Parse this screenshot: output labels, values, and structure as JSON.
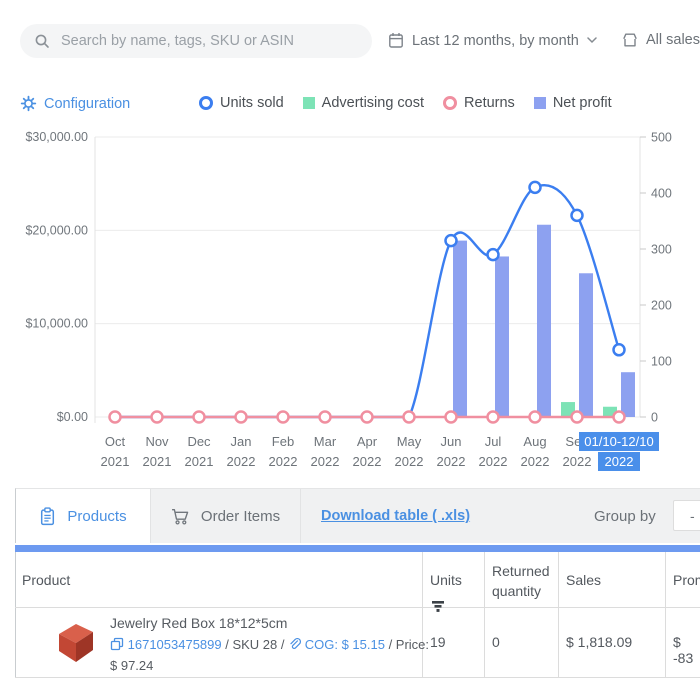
{
  "topbar": {
    "search_placeholder": "Search by name, tags, SKU or ASIN",
    "date_range": "Last 12 months, by month",
    "sales_channel": "All sales chan"
  },
  "config": {
    "label": "Configuration"
  },
  "legend": [
    {
      "label": "Units sold",
      "shape": "circle",
      "color": "#3b7ef0"
    },
    {
      "label": "Advertising cost",
      "shape": "square",
      "color": "#7de3b6"
    },
    {
      "label": "Returns",
      "shape": "circle",
      "color": "#f08fa0"
    },
    {
      "label": "Net profit",
      "shape": "square",
      "color": "#8da1f0"
    }
  ],
  "chart_data": {
    "type": "combo",
    "legend_position": "top",
    "grid": "horizontal",
    "categories": [
      {
        "line1": "Oct",
        "line2": "2021"
      },
      {
        "line1": "Nov",
        "line2": "2021"
      },
      {
        "line1": "Dec",
        "line2": "2021"
      },
      {
        "line1": "Jan",
        "line2": "2022"
      },
      {
        "line1": "Feb",
        "line2": "2022"
      },
      {
        "line1": "Mar",
        "line2": "2022"
      },
      {
        "line1": "Apr",
        "line2": "2022"
      },
      {
        "line1": "May",
        "line2": "2022"
      },
      {
        "line1": "Jun",
        "line2": "2022"
      },
      {
        "line1": "Jul",
        "line2": "2022"
      },
      {
        "line1": "Aug",
        "line2": "2022"
      },
      {
        "line1": "Sep",
        "line2": "2022"
      },
      {
        "line1": "01/10-12/10",
        "line2": "2022",
        "highlighted": true
      }
    ],
    "series": [
      {
        "name": "Units sold",
        "type": "line",
        "axis": "right",
        "color": "#3b7ef0",
        "marker": "circle-nonzero",
        "values": [
          0,
          0,
          0,
          0,
          0,
          0,
          0,
          0,
          315,
          290,
          410,
          360,
          120
        ]
      },
      {
        "name": "Advertising cost",
        "type": "bar",
        "axis": "left",
        "color": "#7de3b6",
        "values": [
          0,
          0,
          0,
          0,
          0,
          0,
          0,
          0,
          0,
          0,
          0,
          1600,
          1100
        ]
      },
      {
        "name": "Returns",
        "type": "line",
        "axis": "right",
        "color": "#f08fa0",
        "marker": "circle-all",
        "values": [
          0,
          0,
          0,
          0,
          0,
          0,
          0,
          0,
          0,
          0,
          0,
          0,
          0
        ]
      },
      {
        "name": "Net profit",
        "type": "bar",
        "axis": "left",
        "color": "#8da1f0",
        "values": [
          0,
          0,
          0,
          0,
          0,
          0,
          0,
          0,
          18900,
          17200,
          20600,
          15400,
          4800
        ]
      }
    ],
    "left_axis": {
      "min": 0,
      "max": 30000,
      "tick_values": [
        30000,
        20000,
        10000,
        0
      ],
      "tick_labels": [
        "$30,000.00",
        "$20,000.00",
        "$10,000.00",
        "$0.00"
      ]
    },
    "right_axis": {
      "min": 0,
      "max": 500,
      "tick_values": [
        500,
        400,
        300,
        200,
        100,
        0
      ]
    },
    "highlight_color": "#4a8fea"
  },
  "tabs": {
    "products": "Products",
    "order_items": "Order Items",
    "download_link": "Download table ( .xls)",
    "group_by": "Group by",
    "group_by_value": "-"
  },
  "table": {
    "columns": [
      "Product",
      "Units",
      "Returned quantity",
      "Sales",
      "Prom"
    ],
    "row": {
      "name": "Jewelry Red Box 18*12*5cm",
      "asin": "1671053475899",
      "sep1": " / SKU 28 / ",
      "cog": "COG: $ 15.15",
      "price_label": " / Price:",
      "price_value": "$ 97.24",
      "units": "19",
      "returned": "0",
      "sales": "$ 1,818.09",
      "promo": "$ -83"
    }
  },
  "colors": {
    "accent": "#4a90e2",
    "scrollbar": "#6d9af0"
  }
}
